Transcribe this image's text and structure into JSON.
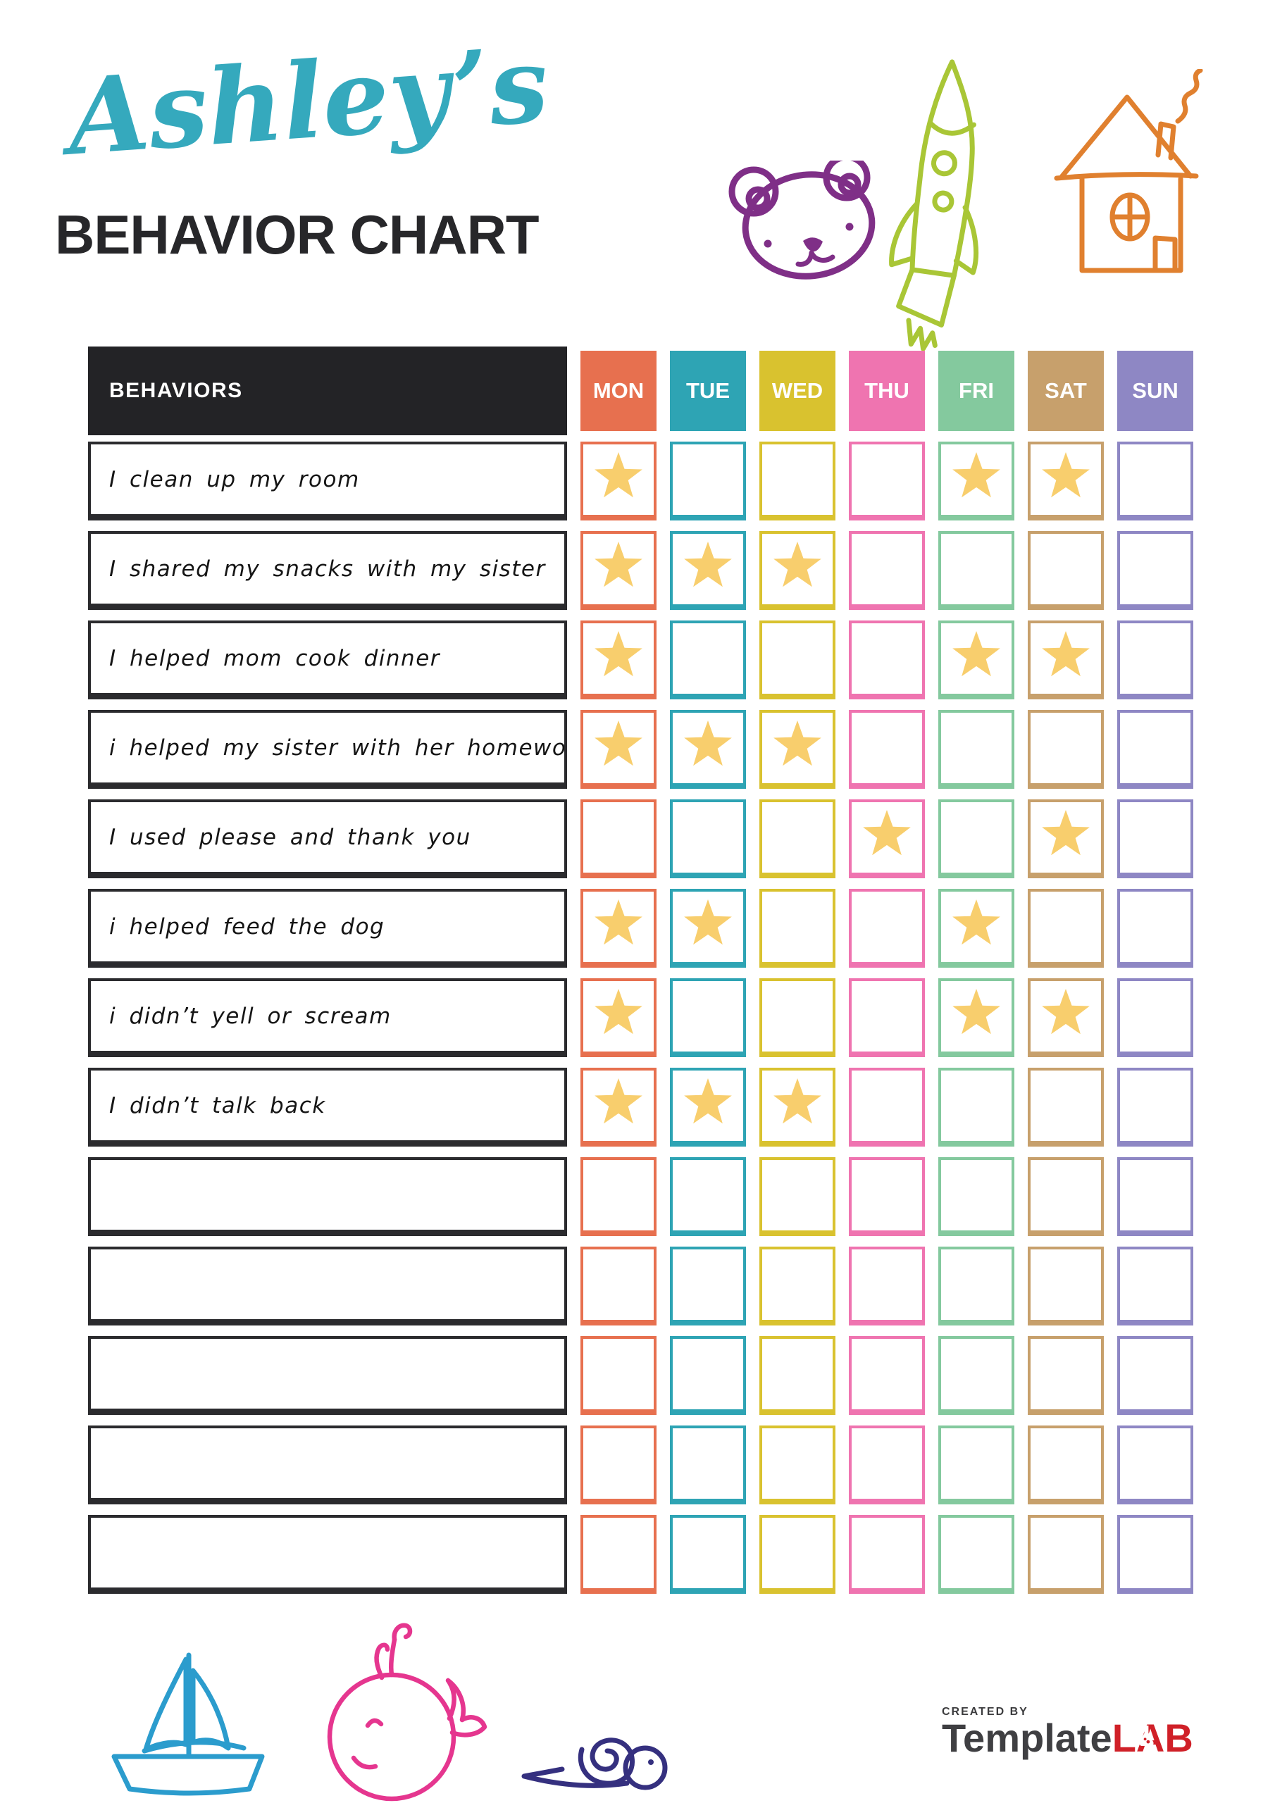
{
  "page": {
    "owner_name": "Ashley’s",
    "owner_color": "#35a9bd",
    "title": "BEHAVIOR CHART",
    "title_color": "#27272a"
  },
  "table": {
    "behaviors_header": "BEHAVIORS",
    "header_bg": "#232326",
    "star_color": "#f8ce6d",
    "days": [
      {
        "label": "MON",
        "color": "#e7704f"
      },
      {
        "label": "TUE",
        "color": "#2ea4b4"
      },
      {
        "label": "WED",
        "color": "#d9c22f"
      },
      {
        "label": "THU",
        "color": "#ef74b0"
      },
      {
        "label": "FRI",
        "color": "#84c99e"
      },
      {
        "label": "SAT",
        "color": "#c7a06c"
      },
      {
        "label": "SUN",
        "color": "#8e87c4"
      }
    ],
    "rows": [
      {
        "label": "I clean up my room",
        "stars": [
          "MON",
          "FRI",
          "SAT"
        ]
      },
      {
        "label": "I shared my snacks with my sister",
        "stars": [
          "MON",
          "TUE",
          "WED"
        ]
      },
      {
        "label": "I helped mom cook dinner",
        "stars": [
          "MON",
          "FRI",
          "SAT"
        ]
      },
      {
        "label": "i helped my sister with her homework",
        "stars": [
          "MON",
          "TUE",
          "WED"
        ]
      },
      {
        "label": "I used please and thank you",
        "stars": [
          "THU",
          "SAT"
        ]
      },
      {
        "label": "i helped feed the dog",
        "stars": [
          "MON",
          "TUE",
          "FRI"
        ]
      },
      {
        "label": "i didn’t yell or scream",
        "stars": [
          "MON",
          "FRI",
          "SAT"
        ]
      },
      {
        "label": "I didn’t talk back",
        "stars": [
          "MON",
          "TUE",
          "WED"
        ]
      },
      {
        "label": "",
        "stars": []
      },
      {
        "label": "",
        "stars": []
      },
      {
        "label": "",
        "stars": []
      },
      {
        "label": "",
        "stars": []
      },
      {
        "label": "",
        "stars": []
      }
    ]
  },
  "doodles": {
    "top": [
      "bear-icon",
      "rocket-icon",
      "house-icon"
    ],
    "bottom": [
      "sailboat-icon",
      "whale-icon",
      "snail-icon"
    ],
    "bear_color": "#7f2f87",
    "rocket_color": "#a9c636",
    "house_color": "#e0802f",
    "boat_color": "#2b9ccd",
    "whale_color": "#e5368f",
    "snail_color": "#35307f"
  },
  "footer": {
    "created_by": "CREATED BY",
    "brand_name": "Template",
    "brand_suffix": "LAB",
    "brand_color": "#3f3f42",
    "brand_accent_color": "#d02028"
  }
}
